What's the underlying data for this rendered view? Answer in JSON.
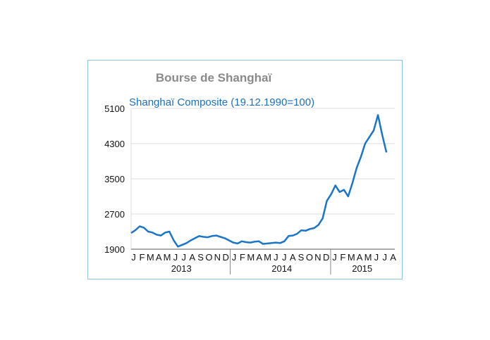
{
  "chart_data": {
    "type": "line",
    "title": "Bourse de Shanghaï",
    "subtitle": "Shanghaï Composite (19.12.1990=100)",
    "xlabel": "",
    "ylabel": "",
    "ylim": [
      1900,
      5100
    ],
    "y_ticks": [
      "5100",
      "4300",
      "3500",
      "2700",
      "1900"
    ],
    "y_tick_values": [
      5100,
      4300,
      3500,
      2700,
      1900
    ],
    "grid": true,
    "colors": {
      "line": "#1a75c9",
      "grid": "#dcdcdc",
      "axis": "#555555",
      "frame": "#8fc3e3"
    },
    "month_labels": [
      "J",
      "F",
      "M",
      "A",
      "M",
      "J",
      "J",
      "A",
      "S",
      "O",
      "N",
      "D",
      "J",
      "F",
      "M",
      "A",
      "M",
      "J",
      "J",
      "A",
      "S",
      "O",
      "N",
      "D",
      "J",
      "F",
      "M",
      "A",
      "M",
      "J",
      "J",
      "A"
    ],
    "year_labels": [
      "2013",
      "2014",
      "2015"
    ],
    "series": [
      {
        "x": [
          "2013-01",
          "2013-01b",
          "2013-02",
          "2013-02b",
          "2013-03",
          "2013-03b",
          "2013-04",
          "2013-04b",
          "2013-05",
          "2013-05b",
          "2013-06",
          "2013-06b",
          "2013-07",
          "2013-07b",
          "2013-08",
          "2013-08b",
          "2013-09",
          "2013-09b",
          "2013-10",
          "2013-10b",
          "2013-11",
          "2013-11b",
          "2013-12",
          "2013-12b",
          "2014-01",
          "2014-01b",
          "2014-02",
          "2014-02b",
          "2014-03",
          "2014-03b",
          "2014-04",
          "2014-04b",
          "2014-05",
          "2014-05b",
          "2014-06",
          "2014-06b",
          "2014-07",
          "2014-07b",
          "2014-08",
          "2014-08b",
          "2014-09",
          "2014-09b",
          "2014-10",
          "2014-10b",
          "2014-11",
          "2014-11b",
          "2014-12",
          "2014-12b",
          "2015-01",
          "2015-01b",
          "2015-02",
          "2015-02b",
          "2015-03",
          "2015-03b",
          "2015-04",
          "2015-04b",
          "2015-05",
          "2015-05b",
          "2015-06",
          "2015-06b",
          "2015-07"
        ],
        "values": [
          2270,
          2330,
          2420,
          2390,
          2300,
          2280,
          2230,
          2210,
          2280,
          2300,
          2100,
          1960,
          2000,
          2040,
          2100,
          2150,
          2200,
          2180,
          2170,
          2200,
          2210,
          2180,
          2150,
          2100,
          2050,
          2030,
          2080,
          2060,
          2050,
          2070,
          2080,
          2020,
          2030,
          2040,
          2050,
          2040,
          2080,
          2200,
          2210,
          2250,
          2330,
          2320,
          2360,
          2380,
          2450,
          2600,
          3000,
          3150,
          3350,
          3200,
          3250,
          3100,
          3400,
          3750,
          4000,
          4300,
          4450,
          4600,
          4950,
          4500,
          4100
        ]
      }
    ]
  }
}
